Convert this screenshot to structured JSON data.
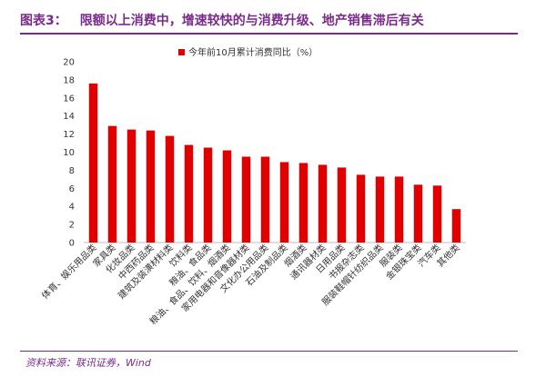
{
  "header": {
    "figure_label": "图表3：",
    "title": "限额以上消费中，增速较快的与消费升级、地产销售滞后有关"
  },
  "source": "资料来源：联讯证券，Wind",
  "colors": {
    "accent": "#7a2a8a",
    "bar": "#e00000",
    "axis": "#bfbfbf"
  },
  "chart_data": {
    "type": "bar",
    "legend": "今年前10月累计消费同比（%）",
    "legend_position": "top-center",
    "grid": false,
    "ylim": [
      0,
      20
    ],
    "yticks": [
      0,
      2,
      4,
      6,
      8,
      10,
      12,
      14,
      16,
      18,
      20
    ],
    "categories": [
      "体育、娱乐用品类",
      "家具类",
      "化妆品类",
      "中西药品类",
      "建筑及装潢材料类",
      "饮料类",
      "粮油、食品类",
      "粮油、食品、饮料、烟酒类",
      "家用电器和音像器材类",
      "文化办公用品类",
      "石油及制品类",
      "烟酒类",
      "通讯器材类",
      "日用品类",
      "书报杂志类",
      "服装鞋帽针纺织品类",
      "服装类",
      "金银珠宝类",
      "汽车类",
      "其他类"
    ],
    "values": [
      17.6,
      12.9,
      12.5,
      12.4,
      11.8,
      10.8,
      10.5,
      10.2,
      9.5,
      9.5,
      8.9,
      8.8,
      8.6,
      8.3,
      7.5,
      7.3,
      7.3,
      6.4,
      6.3,
      3.7
    ]
  }
}
